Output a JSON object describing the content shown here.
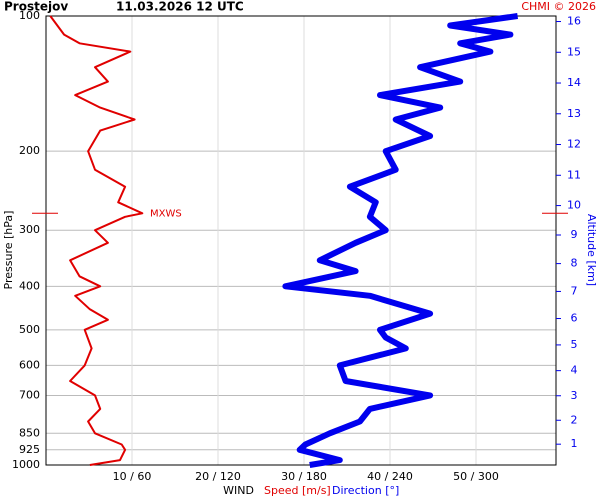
{
  "chart_data": {
    "type": "profile",
    "title": "Prostejov",
    "subtitle": "11.03.2026 12 UTC",
    "credit": "CHMI © 2026",
    "y_label": "Pressure [hPa]",
    "y2_label": "Altitude [km]",
    "x_label": "WIND",
    "y_log": true,
    "grid": true,
    "ylim": [
      1000,
      100
    ],
    "yticks": [
      100,
      200,
      300,
      400,
      500,
      600,
      700,
      850,
      925,
      1000
    ],
    "y2ticks": [
      1,
      2,
      3,
      4,
      5,
      6,
      7,
      8,
      9,
      10,
      11,
      12,
      13,
      14,
      15,
      16
    ],
    "xlim": [
      0,
      59.3
    ],
    "x2lim": [
      0,
      355.8
    ],
    "xticks": [
      {
        "value": 10,
        "label": "10 / 60"
      },
      {
        "value": 20,
        "label": "20 / 120"
      },
      {
        "value": 30,
        "label": "30 / 180"
      },
      {
        "value": 40,
        "label": "40 / 240"
      },
      {
        "value": 50,
        "label": "50 / 300"
      }
    ],
    "annotation": "MXWS",
    "max_wind_pressure": 275,
    "series": [
      {
        "name": "Speed [m/s]",
        "color": "#e00000",
        "axis": "x",
        "y": [
          1000,
          975,
          925,
          900,
          850,
          800,
          750,
          700,
          650,
          600,
          550,
          500,
          475,
          450,
          420,
          400,
          380,
          350,
          320,
          300,
          280,
          275,
          260,
          240,
          220,
          200,
          180,
          170,
          160,
          150,
          140,
          130,
          120,
          115,
          110,
          100
        ],
        "values": [
          5.1,
          8.6,
          9.2,
          8.8,
          5.7,
          4.9,
          6.3,
          5.7,
          2.8,
          4.5,
          5.3,
          4.5,
          7.2,
          5.1,
          3.4,
          6.3,
          3.9,
          2.8,
          7.2,
          5.7,
          9.2,
          11.2,
          8.4,
          9.2,
          5.7,
          4.9,
          6.3,
          10.3,
          6.3,
          3.4,
          7.2,
          5.7,
          9.8,
          3.9,
          2.1,
          0.5
        ]
      },
      {
        "name": "Direction [°]",
        "color": "#0000ee",
        "axis": "x2",
        "y": [
          1000,
          975,
          925,
          900,
          850,
          800,
          750,
          700,
          650,
          600,
          550,
          520,
          500,
          460,
          420,
          400,
          370,
          350,
          320,
          300,
          280,
          260,
          240,
          220,
          200,
          185,
          170,
          160,
          150,
          140,
          130,
          120,
          115,
          110,
          105,
          100
        ],
        "values": [
          184,
          205,
          177,
          181,
          198,
          219,
          226,
          268,
          209,
          205,
          251,
          237,
          233,
          268,
          226,
          167,
          216,
          191,
          216,
          237,
          226,
          230,
          212,
          244,
          237,
          268,
          244,
          275,
          233,
          289,
          261,
          310,
          289,
          324,
          282,
          329
        ]
      }
    ]
  }
}
